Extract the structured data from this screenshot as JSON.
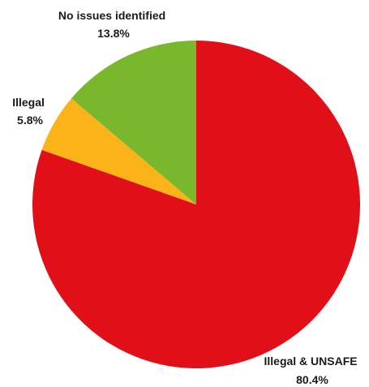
{
  "chart_data": {
    "type": "pie",
    "start": "top",
    "direction": "clockwise",
    "slices": [
      {
        "label": "Illegal & UNSAFE",
        "percent_text": "80.4%",
        "value": 80.4,
        "color": "#e10f17"
      },
      {
        "label": "Illegal",
        "percent_text": "5.8%",
        "value": 5.8,
        "color": "#fbb31a"
      },
      {
        "label": "No issues identified",
        "percent_text": "13.8%",
        "value": 13.8,
        "color": "#79b82c"
      }
    ]
  }
}
